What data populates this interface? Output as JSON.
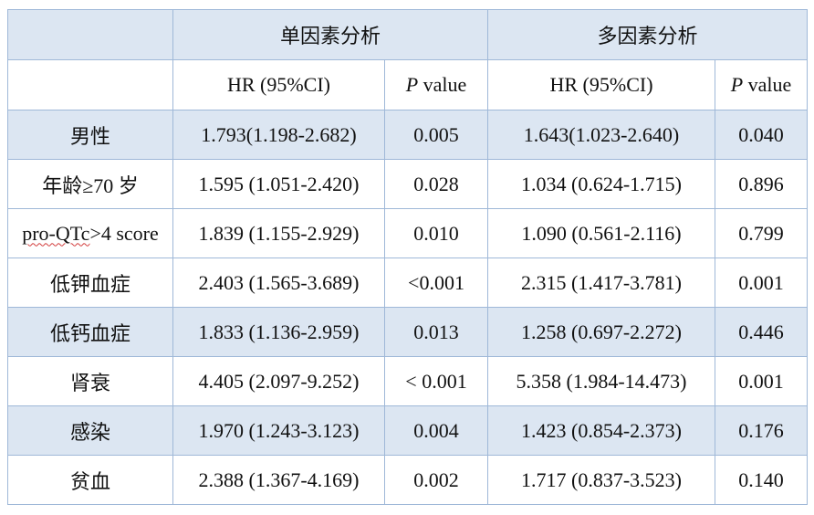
{
  "header": {
    "group_uni": "单因素分析",
    "group_multi": "多因素分析",
    "col_hr": "HR (95%CI)",
    "col_p_italic": "P",
    "col_p_rest": " value"
  },
  "rows": [
    {
      "name": "男性",
      "uni_hr": "1.793(1.198-2.682)",
      "uni_p": "0.005",
      "multi_hr": "1.643(1.023-2.640)",
      "multi_p": "0.040"
    },
    {
      "name": "年龄≥70  岁",
      "uni_hr": "1.595 (1.051-2.420)",
      "uni_p": "0.028",
      "multi_hr": "1.034 (0.624-1.715)",
      "multi_p": "0.896"
    },
    {
      "name_a": "pro-QTc",
      "name_b": ">4 score",
      "uni_hr": "1.839 (1.155-2.929)",
      "uni_p": "0.010",
      "multi_hr": "1.090 (0.561-2.116)",
      "multi_p": "0.799"
    },
    {
      "name": "低钾血症",
      "uni_hr": "2.403 (1.565-3.689)",
      "uni_p": "<0.001",
      "multi_hr": "2.315 (1.417-3.781)",
      "multi_p": "0.001"
    },
    {
      "name": "低钙血症",
      "uni_hr": "1.833 (1.136-2.959)",
      "uni_p": "0.013",
      "multi_hr": "1.258 (0.697-2.272)",
      "multi_p": "0.446"
    },
    {
      "name": "肾衰",
      "uni_hr": "4.405 (2.097-9.252)",
      "uni_p": "< 0.001",
      "multi_hr": "5.358 (1.984-14.473)",
      "multi_p": "0.001"
    },
    {
      "name": "感染",
      "uni_hr": "1.970 (1.243-3.123)",
      "uni_p": "0.004",
      "multi_hr": "1.423 (0.854-2.373)",
      "multi_p": "0.176"
    },
    {
      "name": "贫血",
      "uni_hr": "2.388 (1.367-4.169)",
      "uni_p": "0.002",
      "multi_hr": "1.717 (0.837-3.523)",
      "multi_p": "0.140"
    }
  ],
  "colors": {
    "shade": "#dce6f2",
    "border": "#9fb8d8",
    "spellcheck": "#d23b3b"
  }
}
